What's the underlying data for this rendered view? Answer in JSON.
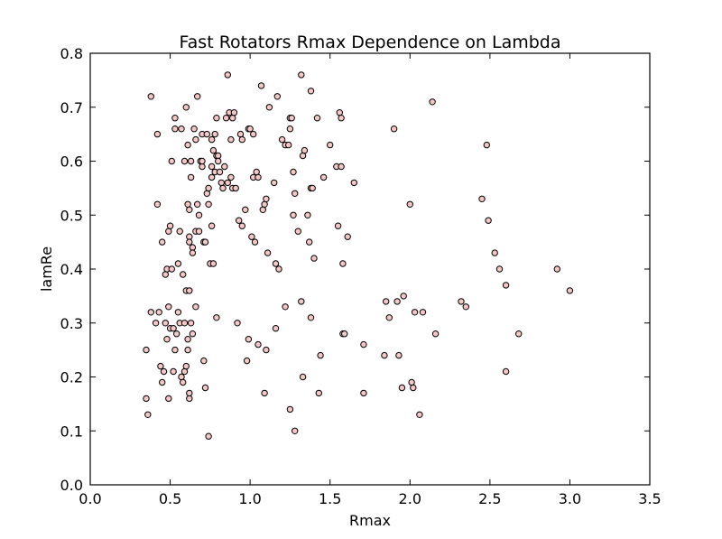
{
  "chart_data": {
    "type": "scatter",
    "title": "Fast Rotators Rmax Dependence on Lambda",
    "xlabel": "Rmax",
    "ylabel": "lamRe",
    "xlim": [
      0.0,
      3.5
    ],
    "ylim": [
      0.0,
      0.8
    ],
    "x_ticks": [
      "0.0",
      "0.5",
      "1.0",
      "1.5",
      "2.0",
      "2.5",
      "3.0",
      "3.5"
    ],
    "y_ticks": [
      "0.0",
      "0.1",
      "0.2",
      "0.3",
      "0.4",
      "0.5",
      "0.6",
      "0.7",
      "0.8"
    ],
    "grid": false,
    "marker_fill": "#f4c6c6",
    "marker_edge": "#000000",
    "points": [
      [
        0.38,
        0.72
      ],
      [
        0.42,
        0.65
      ],
      [
        0.42,
        0.52
      ],
      [
        0.45,
        0.45
      ],
      [
        0.47,
        0.39
      ],
      [
        0.48,
        0.4
      ],
      [
        0.49,
        0.47
      ],
      [
        0.5,
        0.48
      ],
      [
        0.51,
        0.4
      ],
      [
        0.51,
        0.6
      ],
      [
        0.53,
        0.68
      ],
      [
        0.53,
        0.66
      ],
      [
        0.55,
        0.41
      ],
      [
        0.56,
        0.47
      ],
      [
        0.57,
        0.66
      ],
      [
        0.58,
        0.39
      ],
      [
        0.59,
        0.6
      ],
      [
        0.6,
        0.36
      ],
      [
        0.6,
        0.7
      ],
      [
        0.61,
        0.52
      ],
      [
        0.61,
        0.63
      ],
      [
        0.62,
        0.46
      ],
      [
        0.62,
        0.45
      ],
      [
        0.62,
        0.51
      ],
      [
        0.62,
        0.36
      ],
      [
        0.63,
        0.6
      ],
      [
        0.63,
        0.57
      ],
      [
        0.64,
        0.44
      ],
      [
        0.64,
        0.43
      ],
      [
        0.65,
        0.66
      ],
      [
        0.66,
        0.64
      ],
      [
        0.66,
        0.47
      ],
      [
        0.67,
        0.72
      ],
      [
        0.67,
        0.52
      ],
      [
        0.68,
        0.5
      ],
      [
        0.68,
        0.47
      ],
      [
        0.69,
        0.6
      ],
      [
        0.7,
        0.65
      ],
      [
        0.7,
        0.59
      ],
      [
        0.7,
        0.6
      ],
      [
        0.71,
        0.45
      ],
      [
        0.72,
        0.45
      ],
      [
        0.73,
        0.54
      ],
      [
        0.73,
        0.65
      ],
      [
        0.74,
        0.52
      ],
      [
        0.74,
        0.55
      ],
      [
        0.75,
        0.41
      ],
      [
        0.76,
        0.64
      ],
      [
        0.76,
        0.59
      ],
      [
        0.76,
        0.57
      ],
      [
        0.76,
        0.48
      ],
      [
        0.77,
        0.41
      ],
      [
        0.77,
        0.62
      ],
      [
        0.78,
        0.58
      ],
      [
        0.78,
        0.65
      ],
      [
        0.79,
        0.68
      ],
      [
        0.79,
        0.61
      ],
      [
        0.8,
        0.61
      ],
      [
        0.8,
        0.6
      ],
      [
        0.81,
        0.58
      ],
      [
        0.82,
        0.56
      ],
      [
        0.83,
        0.55
      ],
      [
        0.84,
        0.59
      ],
      [
        0.85,
        0.68
      ],
      [
        0.86,
        0.56
      ],
      [
        0.86,
        0.76
      ],
      [
        0.87,
        0.69
      ],
      [
        0.88,
        0.64
      ],
      [
        0.88,
        0.57
      ],
      [
        0.89,
        0.68
      ],
      [
        0.89,
        0.55
      ],
      [
        0.9,
        0.69
      ],
      [
        0.91,
        0.55
      ],
      [
        0.93,
        0.49
      ],
      [
        0.94,
        0.65
      ],
      [
        0.95,
        0.48
      ],
      [
        0.95,
        0.64
      ],
      [
        0.97,
        0.51
      ],
      [
        0.99,
        0.66
      ],
      [
        1.0,
        0.66
      ],
      [
        1.01,
        0.46
      ],
      [
        1.02,
        0.65
      ],
      [
        1.02,
        0.57
      ],
      [
        1.03,
        0.45
      ],
      [
        1.04,
        0.58
      ],
      [
        1.05,
        0.57
      ],
      [
        1.07,
        0.74
      ],
      [
        1.08,
        0.51
      ],
      [
        1.09,
        0.52
      ],
      [
        1.1,
        0.53
      ],
      [
        1.11,
        0.43
      ],
      [
        1.12,
        0.7
      ],
      [
        1.15,
        0.56
      ],
      [
        1.16,
        0.41
      ],
      [
        1.17,
        0.72
      ],
      [
        1.18,
        0.4
      ],
      [
        1.2,
        0.64
      ],
      [
        1.22,
        0.63
      ],
      [
        1.24,
        0.63
      ],
      [
        1.25,
        0.68
      ],
      [
        1.25,
        0.66
      ],
      [
        1.26,
        0.68
      ],
      [
        1.27,
        0.58
      ],
      [
        1.27,
        0.5
      ],
      [
        1.28,
        0.54
      ],
      [
        1.3,
        0.47
      ],
      [
        1.32,
        0.76
      ],
      [
        1.33,
        0.61
      ],
      [
        1.34,
        0.62
      ],
      [
        1.36,
        0.5
      ],
      [
        1.37,
        0.45
      ],
      [
        1.38,
        0.73
      ],
      [
        1.38,
        0.55
      ],
      [
        1.39,
        0.55
      ],
      [
        1.4,
        0.42
      ],
      [
        1.42,
        0.68
      ],
      [
        1.46,
        0.57
      ],
      [
        1.5,
        0.63
      ],
      [
        1.54,
        0.59
      ],
      [
        1.55,
        0.48
      ],
      [
        1.56,
        0.69
      ],
      [
        1.57,
        0.68
      ],
      [
        1.57,
        0.59
      ],
      [
        1.58,
        0.41
      ],
      [
        1.61,
        0.46
      ],
      [
        1.65,
        0.56
      ],
      [
        0.35,
        0.25
      ],
      [
        0.35,
        0.16
      ],
      [
        0.36,
        0.13
      ],
      [
        0.38,
        0.32
      ],
      [
        0.41,
        0.3
      ],
      [
        0.43,
        0.32
      ],
      [
        0.44,
        0.22
      ],
      [
        0.45,
        0.19
      ],
      [
        0.46,
        0.21
      ],
      [
        0.47,
        0.3
      ],
      [
        0.48,
        0.27
      ],
      [
        0.49,
        0.16
      ],
      [
        0.49,
        0.33
      ],
      [
        0.5,
        0.29
      ],
      [
        0.52,
        0.21
      ],
      [
        0.52,
        0.29
      ],
      [
        0.53,
        0.25
      ],
      [
        0.54,
        0.28
      ],
      [
        0.55,
        0.32
      ],
      [
        0.56,
        0.3
      ],
      [
        0.57,
        0.2
      ],
      [
        0.58,
        0.19
      ],
      [
        0.59,
        0.3
      ],
      [
        0.59,
        0.21
      ],
      [
        0.6,
        0.22
      ],
      [
        0.61,
        0.25
      ],
      [
        0.61,
        0.27
      ],
      [
        0.62,
        0.16
      ],
      [
        0.62,
        0.17
      ],
      [
        0.63,
        0.3
      ],
      [
        0.64,
        0.28
      ],
      [
        0.66,
        0.33
      ],
      [
        0.71,
        0.23
      ],
      [
        0.72,
        0.18
      ],
      [
        0.74,
        0.09
      ],
      [
        0.79,
        0.31
      ],
      [
        0.92,
        0.3
      ],
      [
        0.98,
        0.23
      ],
      [
        0.99,
        0.27
      ],
      [
        1.05,
        0.26
      ],
      [
        1.09,
        0.17
      ],
      [
        1.1,
        0.25
      ],
      [
        1.16,
        0.29
      ],
      [
        1.22,
        0.33
      ],
      [
        1.25,
        0.14
      ],
      [
        1.28,
        0.1
      ],
      [
        1.32,
        0.34
      ],
      [
        1.33,
        0.2
      ],
      [
        1.38,
        0.31
      ],
      [
        1.43,
        0.17
      ],
      [
        1.44,
        0.24
      ],
      [
        1.58,
        0.28
      ],
      [
        1.59,
        0.28
      ],
      [
        1.71,
        0.26
      ],
      [
        1.71,
        0.17
      ],
      [
        1.84,
        0.24
      ],
      [
        1.85,
        0.34
      ],
      [
        1.87,
        0.31
      ],
      [
        1.9,
        0.66
      ],
      [
        1.92,
        0.34
      ],
      [
        1.93,
        0.24
      ],
      [
        1.95,
        0.18
      ],
      [
        1.96,
        0.35
      ],
      [
        2.0,
        0.52
      ],
      [
        2.01,
        0.19
      ],
      [
        2.02,
        0.18
      ],
      [
        2.03,
        0.32
      ],
      [
        2.06,
        0.13
      ],
      [
        2.08,
        0.32
      ],
      [
        2.14,
        0.71
      ],
      [
        2.16,
        0.28
      ],
      [
        2.32,
        0.34
      ],
      [
        2.35,
        0.33
      ],
      [
        2.45,
        0.53
      ],
      [
        2.48,
        0.63
      ],
      [
        2.49,
        0.49
      ],
      [
        2.53,
        0.43
      ],
      [
        2.56,
        0.4
      ],
      [
        2.6,
        0.37
      ],
      [
        2.6,
        0.21
      ],
      [
        2.68,
        0.28
      ],
      [
        2.92,
        0.4
      ],
      [
        3.0,
        0.36
      ]
    ]
  }
}
